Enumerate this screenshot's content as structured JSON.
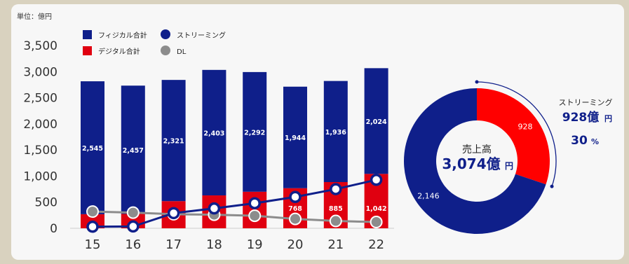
{
  "unit_label": "単位：億円",
  "colors": {
    "physical": "#0f1f8a",
    "digital": "#e00010",
    "streaming": "#0f1f8a",
    "dl": "#8c8c8c",
    "donut_physical": "#0f1f8a",
    "donut_streaming": "#ff0000"
  },
  "legend": {
    "physical": "フィジカル合計",
    "streaming": "ストリーミング",
    "digital": "デジタル合計",
    "dl": "DL"
  },
  "chart_data": [
    {
      "type": "bar",
      "title": "",
      "categories": [
        "15",
        "16",
        "17",
        "18",
        "19",
        "20",
        "21",
        "22"
      ],
      "ylim": [
        0,
        3500
      ],
      "yticks": [
        "0",
        "500",
        "1,000",
        "1,500",
        "2,000",
        "2,500",
        "3,000",
        "3,500"
      ],
      "series": [
        {
          "name": "フィジカル合計",
          "kind": "stacked-bar",
          "values": [
            2545,
            2457,
            2321,
            2403,
            2292,
            1944,
            1936,
            2024
          ],
          "labels": [
            "2,545",
            "2,457",
            "2,321",
            "2,403",
            "2,292",
            "1,944",
            "1,936",
            "2,024"
          ]
        },
        {
          "name": "デジタル合計",
          "kind": "stacked-bar",
          "values": [
            270,
            275,
            520,
            630,
            700,
            768,
            885,
            1042
          ],
          "labels": [
            "",
            "",
            "",
            "",
            "",
            "768",
            "885",
            "1,042"
          ]
        },
        {
          "name": "ストリーミング",
          "kind": "line",
          "values": [
            30,
            35,
            290,
            380,
            480,
            600,
            750,
            928
          ]
        },
        {
          "name": "DL",
          "kind": "line",
          "values": [
            320,
            300,
            270,
            260,
            240,
            180,
            140,
            120
          ]
        }
      ],
      "legend_position": "top-left",
      "grid": false
    },
    {
      "type": "pie",
      "donut": true,
      "center_title": "売上高",
      "center_value": "3,074億",
      "center_unit": "円",
      "slices": [
        {
          "label": "928",
          "value": 928
        },
        {
          "label": "2,146",
          "value": 2146
        }
      ],
      "callout": {
        "name": "ストリーミング",
        "value": "928億",
        "unit": "円",
        "percent": "30",
        "percent_unit": "%"
      }
    }
  ]
}
